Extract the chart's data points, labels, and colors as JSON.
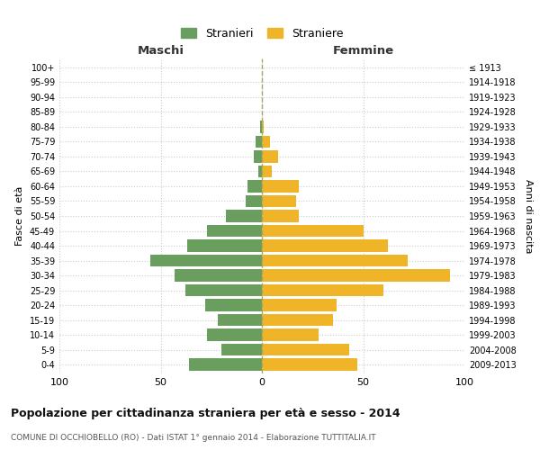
{
  "age_groups": [
    "0-4",
    "5-9",
    "10-14",
    "15-19",
    "20-24",
    "25-29",
    "30-34",
    "35-39",
    "40-44",
    "45-49",
    "50-54",
    "55-59",
    "60-64",
    "65-69",
    "70-74",
    "75-79",
    "80-84",
    "85-89",
    "90-94",
    "95-99",
    "100+"
  ],
  "birth_years": [
    "2009-2013",
    "2004-2008",
    "1999-2003",
    "1994-1998",
    "1989-1993",
    "1984-1988",
    "1979-1983",
    "1974-1978",
    "1969-1973",
    "1964-1968",
    "1959-1963",
    "1954-1958",
    "1949-1953",
    "1944-1948",
    "1939-1943",
    "1934-1938",
    "1929-1933",
    "1924-1928",
    "1919-1923",
    "1914-1918",
    "≤ 1913"
  ],
  "maschi": [
    36,
    20,
    27,
    22,
    28,
    38,
    43,
    55,
    37,
    27,
    18,
    8,
    7,
    2,
    4,
    3,
    1,
    0,
    0,
    0,
    0
  ],
  "femmine": [
    47,
    43,
    28,
    35,
    37,
    60,
    93,
    72,
    62,
    50,
    18,
    17,
    18,
    5,
    8,
    4,
    1,
    0,
    0,
    0,
    0
  ],
  "maschi_color": "#6a9e5e",
  "femmine_color": "#f0b429",
  "grid_color": "#cccccc",
  "title": "Popolazione per cittadinanza straniera per età e sesso - 2014",
  "subtitle": "COMUNE DI OCCHIOBELLO (RO) - Dati ISTAT 1° gennaio 2014 - Elaborazione TUTTITALIA.IT",
  "xlabel_left": "Maschi",
  "xlabel_right": "Femmine",
  "ylabel_left": "Fasce di età",
  "ylabel_right": "Anni di nascita",
  "legend_maschi": "Stranieri",
  "legend_femmine": "Straniere",
  "xlim": 100,
  "x_tick_labels": [
    "100",
    "50",
    "0",
    "50",
    "100"
  ]
}
